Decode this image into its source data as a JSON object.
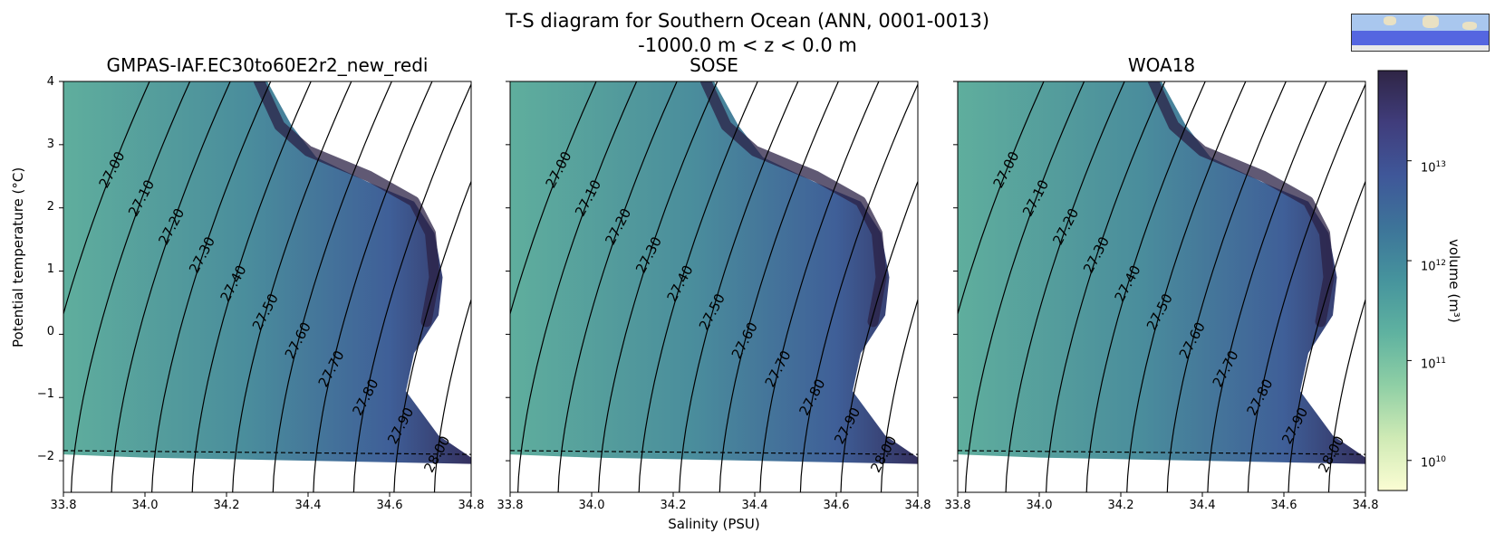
{
  "title_line1": "T-S diagram for Southern Ocean (ANN, 0001-0013)",
  "title_line2": "-1000.0 m < z < 0.0 m",
  "colors": {
    "cmap": [
      "#fbfdd3",
      "#cfeab5",
      "#8fcfa5",
      "#5fb2a0",
      "#46949d",
      "#3d7499",
      "#3f5799",
      "#403d7c",
      "#2f2545"
    ],
    "contour": "#000000",
    "dashed": "#000000"
  },
  "chart_data": [
    {
      "type": "heatmap",
      "title": "GMPAS-IAF.EC30to60E2r2_new_redi",
      "xlabel": "",
      "ylabel": "Potential temperature (°C)",
      "xlim": [
        33.8,
        34.8
      ],
      "ylim": [
        -2.5,
        4
      ],
      "xticks": [
        "33.8",
        "34.0",
        "34.2",
        "34.4",
        "34.6",
        "34.8"
      ],
      "yticks": [
        "−2",
        "−1",
        "0",
        "1",
        "2",
        "3",
        "4"
      ],
      "freezing_line": [
        [
          33.8,
          -1.84
        ],
        [
          34.8,
          -1.9
        ]
      ],
      "density_contours": [
        "27.00",
        "27.10",
        "27.20",
        "27.30",
        "27.40",
        "27.50",
        "27.60",
        "27.70",
        "27.80",
        "27.90",
        "28.00"
      ]
    },
    {
      "type": "heatmap",
      "title": "SOSE",
      "xlabel": "Salinity (PSU)",
      "ylabel": "",
      "xlim": [
        33.8,
        34.8
      ],
      "ylim": [
        -2.5,
        4
      ],
      "xticks": [
        "33.8",
        "34.0",
        "34.2",
        "34.4",
        "34.6",
        "34.8"
      ],
      "freezing_line": [
        [
          33.8,
          -1.84
        ],
        [
          34.8,
          -1.9
        ]
      ],
      "density_contours": [
        "27.00",
        "27.10",
        "27.20",
        "27.30",
        "27.40",
        "27.50",
        "27.60",
        "27.70",
        "27.80",
        "27.90",
        "28.00"
      ]
    },
    {
      "type": "heatmap",
      "title": "WOA18",
      "xlabel": "",
      "ylabel": "",
      "xlim": [
        33.8,
        34.8
      ],
      "ylim": [
        -2.5,
        4
      ],
      "xticks": [
        "33.8",
        "34.0",
        "34.2",
        "34.4",
        "34.6",
        "34.8"
      ],
      "freezing_line": [
        [
          33.8,
          -1.84
        ],
        [
          34.8,
          -1.9
        ]
      ],
      "density_contours": [
        "27.00",
        "27.10",
        "27.20",
        "27.30",
        "27.40",
        "27.50",
        "27.60",
        "27.70",
        "27.80",
        "27.90",
        "28.00"
      ]
    }
  ],
  "colorbar": {
    "label": "volume (m³)",
    "scale": "log",
    "range": [
      5000000000.0,
      80000000000000.0
    ],
    "ticks": [
      {
        "base": "10",
        "exp": "10",
        "value": 10000000000.0
      },
      {
        "base": "10",
        "exp": "11",
        "value": 100000000000.0
      },
      {
        "base": "10",
        "exp": "12",
        "value": 1000000000000.0
      },
      {
        "base": "10",
        "exp": "13",
        "value": 10000000000000.0
      }
    ]
  }
}
